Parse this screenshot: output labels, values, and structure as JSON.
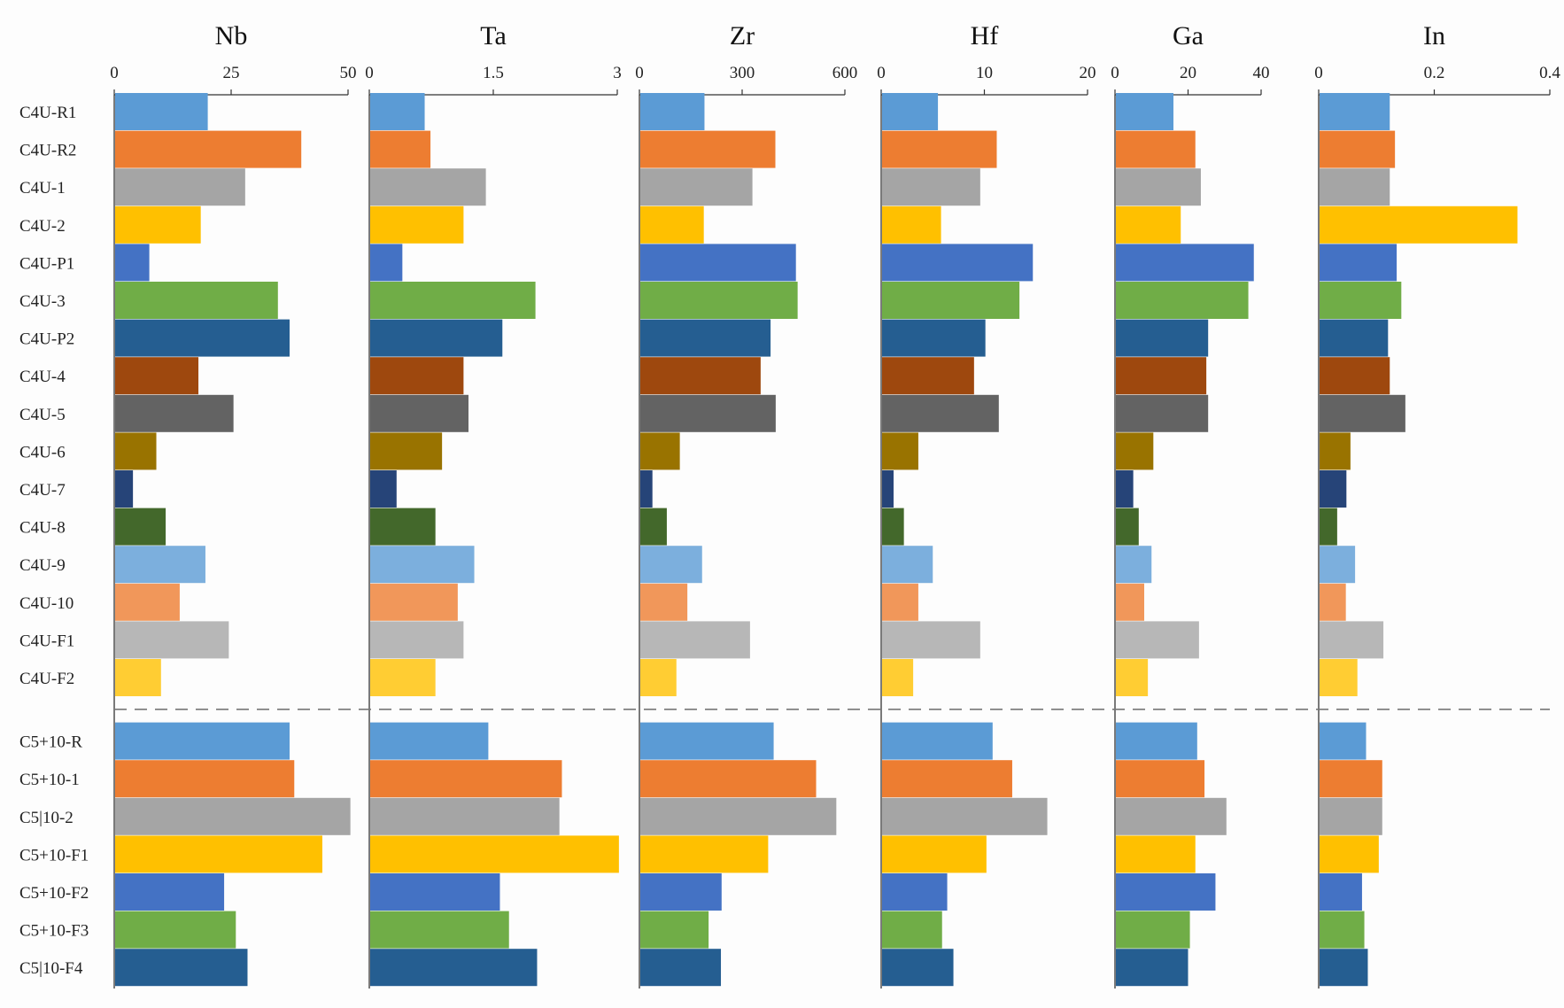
{
  "chart_data": {
    "type": "bar",
    "orientation": "horizontal",
    "grid": false,
    "group_separator_after": "C4U-F2",
    "categories": [
      "C4U-R1",
      "C4U-R2",
      "C4U-1",
      "C4U-2",
      "C4U-P1",
      "C4U-3",
      "C4U-P2",
      "C4U-4",
      "C4U-5",
      "C4U-6",
      "C4U-7",
      "C4U-8",
      "C4U-9",
      "C4U-10",
      "C4U-F1",
      "C4U-F2",
      "C5+10-R",
      "C5+10-1",
      "C5|10-2",
      "C5+10-F1",
      "C5+10-F2",
      "C5+10-F3",
      "C5|10-F4"
    ],
    "bar_colors": [
      "#5b9bd5",
      "#ed7d31",
      "#a5a5a5",
      "#ffc000",
      "#4472c4",
      "#70ad47",
      "#255e91",
      "#9e480e",
      "#636363",
      "#997300",
      "#264478",
      "#43682b",
      "#7cafdd",
      "#f1975a",
      "#b7b7b7",
      "#ffcd33",
      "#5b9bd5",
      "#ed7d31",
      "#a5a5a5",
      "#ffc000",
      "#4472c4",
      "#70ad47",
      "#255e91"
    ],
    "panels": [
      {
        "title": "Nb",
        "xlim": [
          0,
          50
        ],
        "ticks": [
          "0",
          "25",
          "50"
        ],
        "values": [
          20,
          40,
          28,
          18.5,
          7.5,
          35,
          37.5,
          18,
          25.5,
          9,
          4,
          11,
          19.5,
          14,
          24.5,
          10,
          37.5,
          38.5,
          50.5,
          44.5,
          23.5,
          26,
          28.5
        ]
      },
      {
        "title": "Ta",
        "xlim": [
          0,
          3
        ],
        "ticks": [
          "0",
          "1.5",
          "3"
        ],
        "values": [
          0.67,
          0.74,
          1.41,
          1.14,
          0.4,
          2.01,
          1.61,
          1.14,
          1.2,
          0.88,
          0.33,
          0.8,
          1.27,
          1.07,
          1.14,
          0.8,
          1.44,
          2.33,
          2.3,
          3.02,
          1.58,
          1.69,
          2.03
        ]
      },
      {
        "title": "Zr",
        "xlim": [
          0,
          600
        ],
        "ticks": [
          "0",
          "300",
          "600"
        ],
        "values": [
          190,
          397,
          330,
          188,
          457,
          462,
          383,
          354,
          398,
          118,
          38,
          80,
          183,
          140,
          323,
          108,
          392,
          516,
          575,
          376,
          240,
          202,
          238
        ]
      },
      {
        "title": "Hf",
        "xlim": [
          0,
          20
        ],
        "ticks": [
          "0",
          "10",
          "20"
        ],
        "values": [
          5.5,
          11.2,
          9.6,
          5.8,
          14.7,
          13.4,
          10.1,
          9,
          11.4,
          3.6,
          1.2,
          2.2,
          5,
          3.6,
          9.6,
          3.1,
          10.8,
          12.7,
          16.1,
          10.2,
          6.4,
          5.9,
          7
        ]
      },
      {
        "title": "Ga",
        "xlim": [
          0,
          40
        ],
        "ticks": [
          "0",
          "20",
          "40"
        ],
        "values": [
          16,
          22,
          23.5,
          18,
          38,
          36.5,
          25.5,
          25,
          25.5,
          10.5,
          5,
          6.5,
          10,
          8,
          23,
          9,
          22.5,
          24.5,
          30.5,
          22,
          27.5,
          20.5,
          20
        ]
      },
      {
        "title": "In",
        "xlim": [
          0,
          0.4
        ],
        "ticks": [
          "0",
          "0.2",
          "0.4"
        ],
        "values": [
          0.123,
          0.132,
          0.123,
          0.344,
          0.135,
          0.143,
          0.12,
          0.123,
          0.15,
          0.055,
          0.048,
          0.032,
          0.063,
          0.047,
          0.112,
          0.067,
          0.082,
          0.11,
          0.11,
          0.104,
          0.075,
          0.079,
          0.085
        ]
      }
    ]
  }
}
